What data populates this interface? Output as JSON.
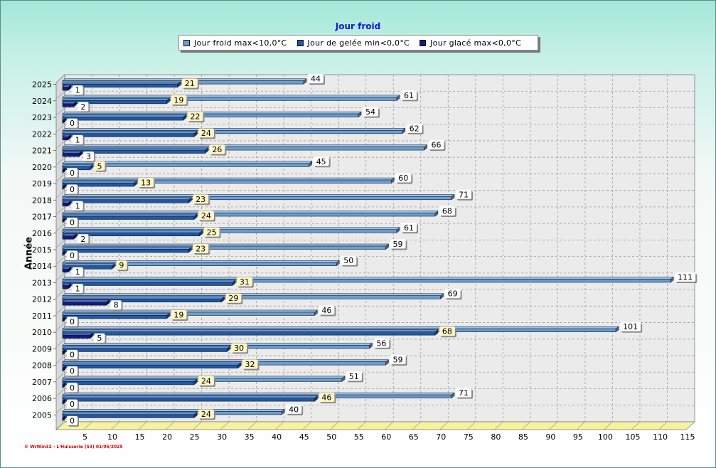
{
  "chart_data": {
    "type": "bar",
    "orientation": "horizontal",
    "title": "Jour froid",
    "ylabel": "Année",
    "xlabel": "",
    "xlim": [
      0,
      115
    ],
    "xticks": [
      5,
      10,
      15,
      20,
      25,
      30,
      35,
      40,
      45,
      50,
      55,
      60,
      65,
      70,
      75,
      80,
      85,
      90,
      95,
      100,
      105,
      110,
      115
    ],
    "grid": true,
    "legend_position": "top-center",
    "categories": [
      "2025",
      "2024",
      "2023",
      "2022",
      "2021",
      "2020",
      "2019",
      "2018",
      "2017",
      "2016",
      "2015",
      "2014",
      "2013",
      "2012",
      "2011",
      "2010",
      "2009",
      "2008",
      "2007",
      "2006",
      "2005"
    ],
    "series": [
      {
        "name": "Jour froid max<10,0°C",
        "color": "#6a9ed0",
        "values": [
          44,
          61,
          54,
          62,
          66,
          45,
          60,
          71,
          68,
          61,
          59,
          50,
          111,
          69,
          46,
          101,
          56,
          59,
          51,
          71,
          40
        ]
      },
      {
        "name": "Jour de gelée min<0,0°C",
        "color": "#1f5aa6",
        "values": [
          21,
          19,
          22,
          24,
          26,
          5,
          13,
          23,
          24,
          25,
          23,
          9,
          31,
          29,
          19,
          68,
          30,
          32,
          24,
          46,
          24
        ]
      },
      {
        "name": "Jour glacé max<0,0°C",
        "color": "#0c1f80",
        "values": [
          1,
          2,
          0,
          1,
          3,
          0,
          0,
          1,
          0,
          2,
          0,
          1,
          1,
          8,
          0,
          5,
          0,
          0,
          0,
          0,
          0
        ]
      }
    ]
  },
  "footer": "© WrWin32 - L'Huisserie (53)  01/05/2025"
}
